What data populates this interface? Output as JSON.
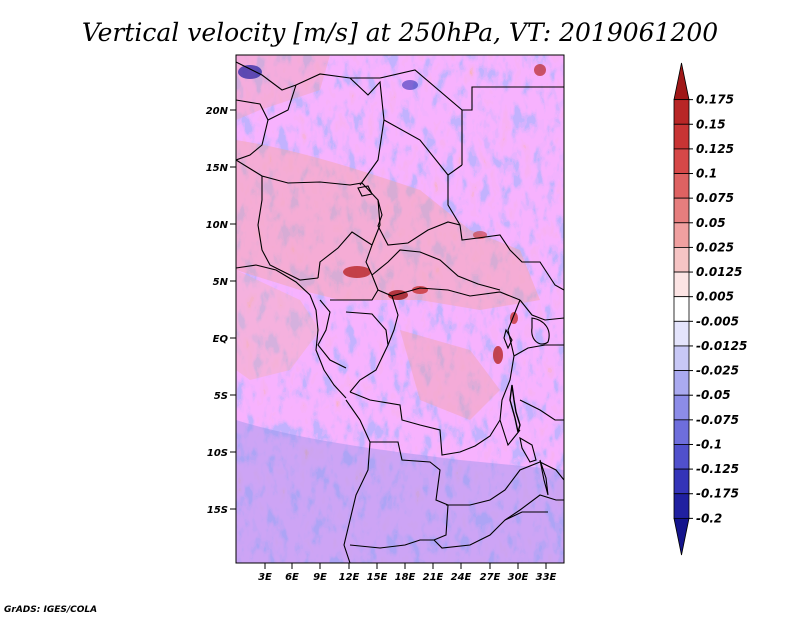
{
  "title": "Vertical velocity [m/s] at 250hPa, VT: 2019061200",
  "credit": "GrADS: IGES/COLA",
  "lat_labels": [
    "20N",
    "15N",
    "10N",
    "5N",
    "EQ",
    "5S",
    "10S",
    "15S"
  ],
  "lon_labels": [
    "3E",
    "6E",
    "9E",
    "12E",
    "15E",
    "18E",
    "21E",
    "24E",
    "27E",
    "30E",
    "33E"
  ],
  "colorbar": {
    "labels": [
      "0.175",
      "0.15",
      "0.125",
      "0.1",
      "0.075",
      "0.05",
      "0.025",
      "0.0125",
      "0.005",
      "-0.005",
      "-0.0125",
      "-0.025",
      "-0.05",
      "-0.075",
      "-0.1",
      "-0.125",
      "-0.175",
      "-0.2"
    ],
    "colors": [
      "#a01818",
      "#b82626",
      "#c83434",
      "#d64848",
      "#de6262",
      "#e67e7e",
      "#f0a0a0",
      "#f6c4c4",
      "#fce4e4",
      "#ffffff",
      "#e4e4fc",
      "#c8c8f6",
      "#aaaaf0",
      "#8c8ce8",
      "#6e6edc",
      "#5050cc",
      "#3434b8",
      "#2020a0",
      "#14148c"
    ]
  }
}
